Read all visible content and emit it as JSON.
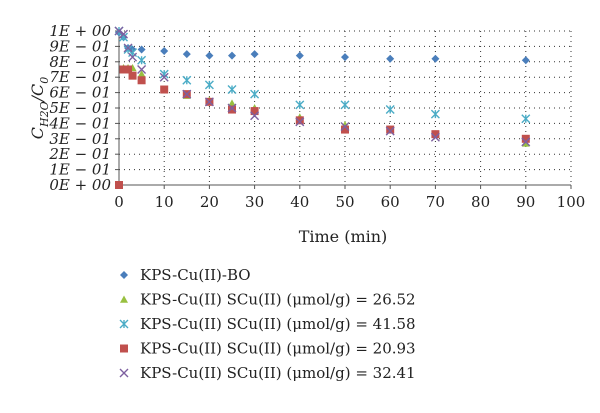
{
  "chart_data": {
    "type": "scatter",
    "title": "",
    "xlabel": "Time (min)",
    "ylabel": {
      "main": "C",
      "sub": "H2O",
      "den_main": "C",
      "den_sub": "0"
    },
    "xlim": [
      0,
      100
    ],
    "ylim": [
      0,
      1
    ],
    "x_ticks": [
      "0",
      "10",
      "20",
      "30",
      "40",
      "50",
      "60",
      "70",
      "80",
      "90",
      "100"
    ],
    "y_ticks": [
      "0E + 00",
      "1E − 01",
      "2E − 01",
      "3E − 01",
      "4E − 01",
      "5E − 01",
      "6E − 01",
      "7E − 01",
      "8E − 01",
      "9E − 01",
      "1E + 00"
    ],
    "grid": "dotted",
    "legend_position": "bottom",
    "series": [
      {
        "name": "KPS-Cu(II)-BO",
        "marker": "diamond",
        "color": "#4a7ebb",
        "points": [
          [
            0,
            0.99
          ],
          [
            1,
            0.96
          ],
          [
            2,
            0.89
          ],
          [
            3,
            0.88
          ],
          [
            5,
            0.88
          ],
          [
            10,
            0.87
          ],
          [
            15,
            0.85
          ],
          [
            20,
            0.84
          ],
          [
            25,
            0.84
          ],
          [
            30,
            0.85
          ],
          [
            40,
            0.84
          ],
          [
            50,
            0.83
          ],
          [
            60,
            0.82
          ],
          [
            70,
            0.82
          ],
          [
            90,
            0.81
          ]
        ]
      },
      {
        "name": "KPS-Cu(II) SCu(II) (μmol/g) = 26.52",
        "marker": "triangle",
        "color": "#98c040",
        "points": [
          [
            0,
            0.0
          ],
          [
            1,
            0.76
          ],
          [
            2,
            0.76
          ],
          [
            3,
            0.76
          ],
          [
            5,
            0.72
          ],
          [
            10,
            0.62
          ],
          [
            15,
            0.58
          ],
          [
            20,
            0.55
          ],
          [
            25,
            0.53
          ],
          [
            30,
            0.5
          ],
          [
            40,
            0.44
          ],
          [
            50,
            0.39
          ],
          [
            60,
            0.36
          ],
          [
            70,
            0.33
          ],
          [
            90,
            0.27
          ]
        ]
      },
      {
        "name": "KPS-Cu(II) SCu(II) (μmol/g) = 41.58",
        "marker": "asterisk",
        "color": "#4bacc6",
        "points": [
          [
            0,
            1.0
          ],
          [
            1,
            0.96
          ],
          [
            2,
            0.88
          ],
          [
            3,
            0.86
          ],
          [
            5,
            0.81
          ],
          [
            10,
            0.72
          ],
          [
            15,
            0.68
          ],
          [
            20,
            0.65
          ],
          [
            25,
            0.62
          ],
          [
            30,
            0.59
          ],
          [
            40,
            0.52
          ],
          [
            50,
            0.52
          ],
          [
            60,
            0.49
          ],
          [
            70,
            0.46
          ],
          [
            90,
            0.43
          ]
        ]
      },
      {
        "name": "KPS-Cu(II) SCu(II) (μmol/g) = 20.93",
        "marker": "square",
        "color": "#c0504d",
        "points": [
          [
            0,
            0.0
          ],
          [
            1,
            0.75
          ],
          [
            2,
            0.75
          ],
          [
            3,
            0.71
          ],
          [
            5,
            0.68
          ],
          [
            10,
            0.62
          ],
          [
            15,
            0.59
          ],
          [
            20,
            0.54
          ],
          [
            25,
            0.49
          ],
          [
            30,
            0.48
          ],
          [
            40,
            0.42
          ],
          [
            50,
            0.36
          ],
          [
            60,
            0.36
          ],
          [
            70,
            0.33
          ],
          [
            90,
            0.3
          ]
        ]
      },
      {
        "name": "KPS-Cu(II) SCu(II) (μmol/g) = 32.41",
        "marker": "cross",
        "color": "#7d60a0",
        "points": [
          [
            0,
            1.0
          ],
          [
            1,
            0.98
          ],
          [
            2,
            0.89
          ],
          [
            3,
            0.83
          ],
          [
            5,
            0.75
          ],
          [
            10,
            0.7
          ],
          [
            15,
            0.59
          ],
          [
            20,
            0.54
          ],
          [
            25,
            0.5
          ],
          [
            30,
            0.45
          ],
          [
            40,
            0.41
          ],
          [
            50,
            0.38
          ],
          [
            60,
            0.35
          ],
          [
            70,
            0.31
          ],
          [
            90,
            0.28
          ]
        ]
      }
    ]
  }
}
